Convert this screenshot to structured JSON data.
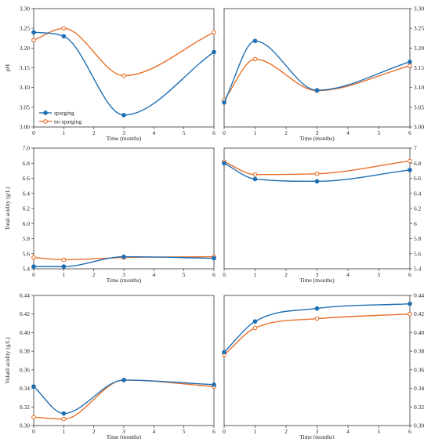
{
  "legend": {
    "position": "bottom-left of top-left panel"
  },
  "colors": {
    "sparging": "#1f6fb4",
    "no_sparging": "#e8702a"
  },
  "chart_data": [
    {
      "type": "line",
      "name": "pH-left",
      "title": "",
      "xlabel": "Time (months)",
      "ylabel": "pH",
      "xlim": [
        0,
        6
      ],
      "ylim": [
        3.0,
        3.3
      ],
      "xticks": [
        "0",
        "1",
        "2",
        "3",
        "4",
        "5",
        "6"
      ],
      "yticks": [
        "3.00",
        "3.05",
        "3.10",
        "3.15",
        "3.20",
        "3.25",
        "3.30"
      ],
      "yaxis_side": "left",
      "series": [
        {
          "name": "sparging",
          "x": [
            0,
            1,
            3,
            6
          ],
          "values": [
            3.24,
            3.23,
            3.03,
            3.19
          ]
        },
        {
          "name": "no sparging",
          "x": [
            0,
            1,
            3,
            6
          ],
          "values": [
            3.22,
            3.25,
            3.13,
            3.24
          ]
        }
      ]
    },
    {
      "type": "line",
      "name": "pH-right",
      "title": "",
      "xlabel": "Time (months)",
      "ylabel": "",
      "xlim": [
        0,
        6
      ],
      "ylim": [
        3.0,
        3.3
      ],
      "xticks": [
        "0",
        "1",
        "2",
        "3",
        "4",
        "5",
        "6"
      ],
      "yticks": [
        "3.00",
        "3.05",
        "3.10",
        "3.15",
        "3.20",
        "3.25",
        "3.30"
      ],
      "yaxis_side": "right",
      "series": [
        {
          "name": "sparging",
          "x": [
            0,
            1,
            3,
            6
          ],
          "values": [
            3.062,
            3.218,
            3.093,
            3.165
          ]
        },
        {
          "name": "no sparging",
          "x": [
            0,
            1,
            3,
            6
          ],
          "values": [
            3.068,
            3.172,
            3.092,
            3.155
          ]
        }
      ]
    },
    {
      "type": "line",
      "name": "total-acidity-left",
      "title": "",
      "xlabel": "Time (months)",
      "ylabel": "Total acidity (g/L)",
      "xlim": [
        0,
        6
      ],
      "ylim": [
        5.4,
        7.0
      ],
      "xticks": [
        "0",
        "1",
        "2",
        "3",
        "4",
        "5",
        "6"
      ],
      "yticks": [
        "5.4",
        "5.6",
        "5.8",
        "6.0",
        "6.2",
        "6.4",
        "6.6",
        "6.8",
        "7.0"
      ],
      "yaxis_side": "left",
      "series": [
        {
          "name": "sparging",
          "x": [
            0,
            1,
            3,
            6
          ],
          "values": [
            5.43,
            5.43,
            5.56,
            5.54
          ]
        },
        {
          "name": "no sparging",
          "x": [
            0,
            1,
            3,
            6
          ],
          "values": [
            5.55,
            5.52,
            5.55,
            5.56
          ]
        }
      ]
    },
    {
      "type": "line",
      "name": "total-acidity-right",
      "title": "",
      "xlabel": "Time (months)",
      "ylabel": "",
      "xlim": [
        0,
        6
      ],
      "ylim": [
        5.4,
        7.0
      ],
      "xticks": [
        "0",
        "1",
        "2",
        "3",
        "4",
        "5",
        "6"
      ],
      "yticks": [
        "5.4",
        "5.6",
        "5.8",
        "6",
        "6.2",
        "6.4",
        "6.6",
        "6.8",
        "7"
      ],
      "yaxis_side": "right",
      "series": [
        {
          "name": "sparging",
          "x": [
            0,
            1,
            3,
            6
          ],
          "values": [
            6.8,
            6.59,
            6.56,
            6.71
          ]
        },
        {
          "name": "no sparging",
          "x": [
            0,
            1,
            3,
            6
          ],
          "values": [
            6.82,
            6.65,
            6.66,
            6.83
          ]
        }
      ]
    },
    {
      "type": "line",
      "name": "volatile-acidity-left",
      "title": "",
      "xlabel": "Time (months)",
      "ylabel": "Volatil acidity (g/L)",
      "xlim": [
        0,
        6
      ],
      "ylim": [
        0.3,
        0.44
      ],
      "xticks": [
        "0",
        "1",
        "2",
        "3",
        "4",
        "5",
        "6"
      ],
      "yticks": [
        "0.30",
        "0.32",
        "0.34",
        "0.36",
        "0.38",
        "0.40",
        "0.42",
        "0.44"
      ],
      "yaxis_side": "left",
      "series": [
        {
          "name": "sparging",
          "x": [
            0,
            1,
            3,
            6
          ],
          "values": [
            0.342,
            0.313,
            0.349,
            0.344
          ]
        },
        {
          "name": "no sparging",
          "x": [
            0,
            1,
            3,
            6
          ],
          "values": [
            0.309,
            0.307,
            0.349,
            0.342
          ]
        }
      ]
    },
    {
      "type": "line",
      "name": "volatile-acidity-right",
      "title": "",
      "xlabel": "Time (months)",
      "ylabel": "",
      "xlim": [
        0,
        6
      ],
      "ylim": [
        0.3,
        0.44
      ],
      "xticks": [
        "0",
        "1",
        "2",
        "3",
        "4",
        "5",
        "6"
      ],
      "yticks": [
        "0.30",
        "0.32",
        "0.34",
        "0.36",
        "0.38",
        "0.40",
        "0.42",
        "0.44"
      ],
      "yaxis_side": "right",
      "series": [
        {
          "name": "sparging",
          "x": [
            0,
            1,
            3,
            6
          ],
          "values": [
            0.379,
            0.412,
            0.426,
            0.431
          ]
        },
        {
          "name": "no sparging",
          "x": [
            0,
            1,
            3,
            6
          ],
          "values": [
            0.376,
            0.405,
            0.415,
            0.42
          ]
        }
      ]
    }
  ]
}
